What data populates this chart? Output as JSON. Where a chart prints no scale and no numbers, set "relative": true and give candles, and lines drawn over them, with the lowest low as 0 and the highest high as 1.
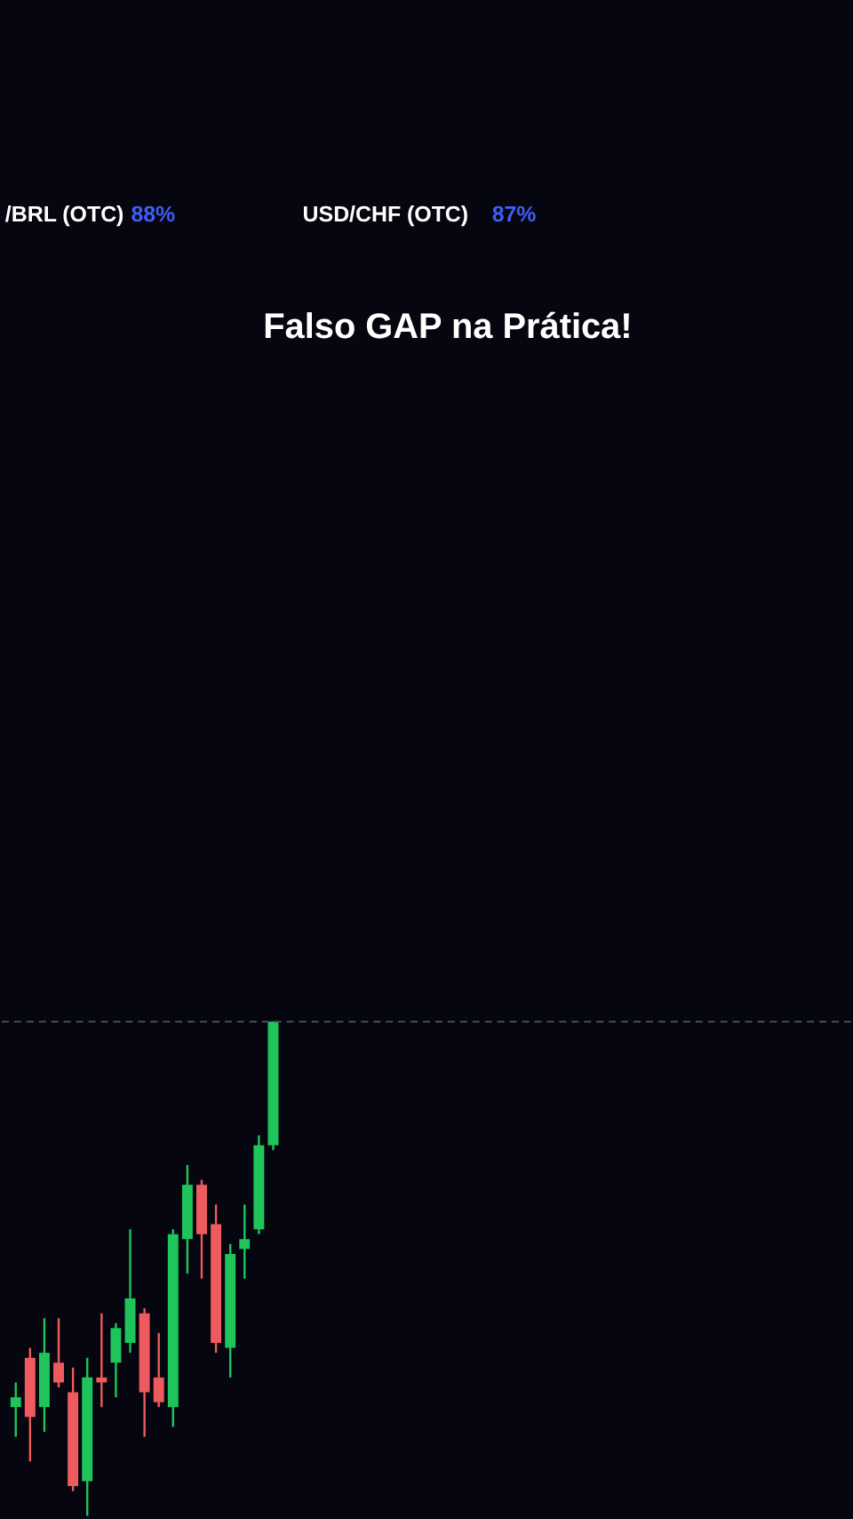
{
  "chart_data": {
    "type": "candlestick",
    "title": "Falso GAP na Prática!",
    "annotations": [
      "/BRL (OTC)",
      "88%",
      "USD/CHF (OTC)",
      "87%"
    ],
    "categories": [
      null,
      null,
      null,
      null,
      null,
      null,
      null,
      null,
      null,
      null,
      null,
      null,
      null,
      null,
      null,
      null,
      null,
      null,
      null
    ],
    "ohlc": [
      [
        0.22,
        0.27,
        0.16,
        0.24
      ],
      [
        0.32,
        0.34,
        0.11,
        0.2
      ],
      [
        0.22,
        0.4,
        0.17,
        0.33
      ],
      [
        0.31,
        0.4,
        0.26,
        0.27
      ],
      [
        0.25,
        0.3,
        0.05,
        0.06
      ],
      [
        0.07,
        0.32,
        0,
        0.28
      ],
      [
        0.28,
        0.41,
        0.22,
        0.27
      ],
      [
        0.31,
        0.39,
        0.24,
        0.38
      ],
      [
        0.35,
        0.58,
        0.33,
        0.44
      ],
      [
        0.41,
        0.42,
        0.16,
        0.25
      ],
      [
        0.28,
        0.37,
        0.22,
        0.23
      ],
      [
        0.22,
        0.58,
        0.18,
        0.57
      ],
      [
        0.56,
        0.71,
        0.49,
        0.67
      ],
      [
        0.67,
        0.68,
        0.48,
        0.57
      ],
      [
        0.59,
        0.63,
        0.33,
        0.35
      ],
      [
        0.34,
        0.55,
        0.28,
        0.53
      ],
      [
        0.54,
        0.63,
        0.48,
        0.56
      ],
      [
        0.58,
        0.77,
        0.57,
        0.75
      ],
      [
        0.75,
        1,
        0.74,
        1
      ]
    ],
    "colors": [
      "#1fc55b",
      "#ee5b5f",
      "#1fc55b",
      "#ee5b5f",
      "#ee5b5f",
      "#1fc55b",
      "#ee5b5f",
      "#1fc55b",
      "#1fc55b",
      "#ee5b5f",
      "#ee5b5f",
      "#1fc55b",
      "#1fc55b",
      "#ee5b5f",
      "#ee5b5f",
      "#1fc55b",
      "#1fc55b",
      "#1fc55b",
      "#1fc55b"
    ],
    "relative": true,
    "ref_lines": [
      {
        "axis": "y",
        "value": 1,
        "line_style": "dashed",
        "color": "#4a4b57"
      }
    ],
    "tick_labels": false
  }
}
